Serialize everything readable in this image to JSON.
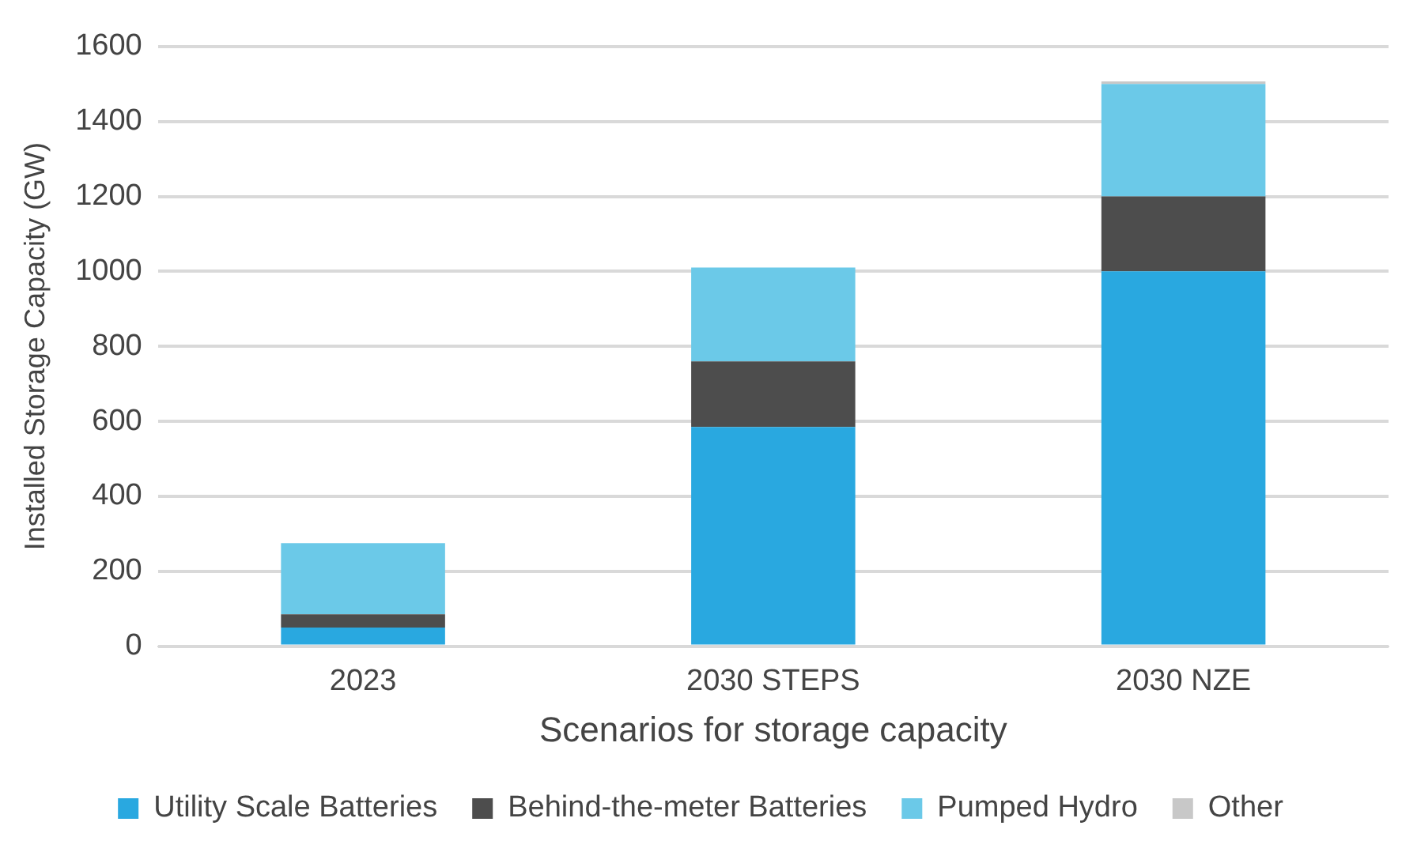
{
  "chart_data": {
    "type": "bar",
    "stacked": true,
    "categories": [
      "2023",
      "2030 STEPS",
      "2030 NZE"
    ],
    "series": [
      {
        "name": "Utility Scale Batteries",
        "color": "#29a8e0",
        "values": [
          50,
          585,
          1000
        ]
      },
      {
        "name": "Behind-the-meter Batteries",
        "color": "#4d4d4d",
        "values": [
          35,
          175,
          200
        ]
      },
      {
        "name": "Pumped Hydro",
        "color": "#6bc9e8",
        "values": [
          190,
          250,
          300
        ]
      },
      {
        "name": "Other",
        "color": "#c8c8c8",
        "values": [
          0,
          0,
          7
        ]
      }
    ],
    "xlabel": "Scenarios for storage capacity",
    "ylabel": "Installed Storage Capacity (GW)",
    "ylim": [
      0,
      1600
    ],
    "yticks": [
      0,
      200,
      400,
      600,
      800,
      1000,
      1200,
      1400,
      1600
    ],
    "grid": "y",
    "legend": "bottom"
  }
}
